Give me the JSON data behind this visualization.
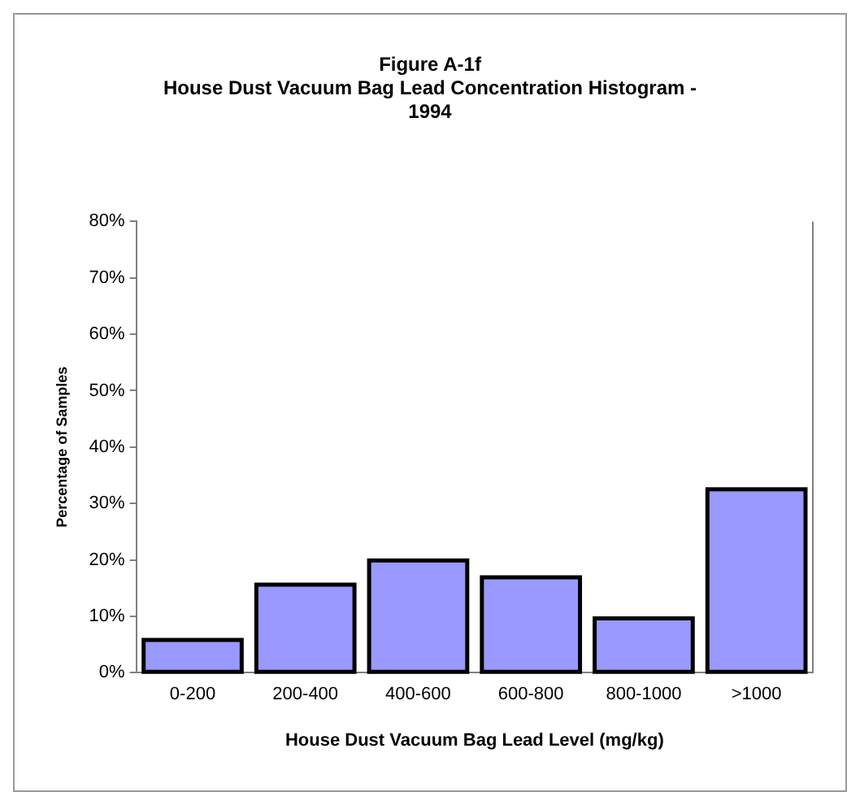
{
  "chart_data": {
    "type": "bar",
    "title": [
      "Figure A-1f",
      "House Dust Vacuum Bag Lead Concentration Histogram -",
      "1994"
    ],
    "categories": [
      "0-200",
      "200-400",
      "400-600",
      "600-800",
      "800-1000",
      ">1000"
    ],
    "values": [
      5.8,
      15.6,
      19.9,
      16.9,
      9.6,
      32.5
    ],
    "color": "#9999ff",
    "ylim": [
      0,
      80
    ],
    "yticks": [
      {
        "value": 0,
        "label": "0%"
      },
      {
        "value": 10,
        "label": "10%"
      },
      {
        "value": 20,
        "label": "20%"
      },
      {
        "value": 30,
        "label": "30%"
      },
      {
        "value": 40,
        "label": "40%"
      },
      {
        "value": 50,
        "label": "50%"
      },
      {
        "value": 60,
        "label": "60%"
      },
      {
        "value": 70,
        "label": "70%"
      },
      {
        "value": 80,
        "label": "80%"
      }
    ],
    "xlabel": "House Dust Vacuum Bag Lead Level (mg/kg)",
    "ylabel": "Percentage of Samples",
    "grid": false
  }
}
